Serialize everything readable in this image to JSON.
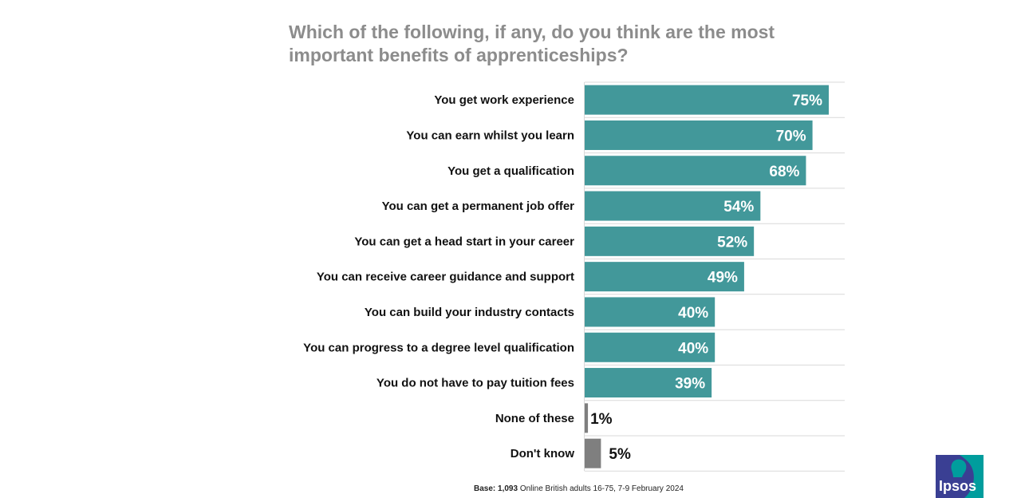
{
  "title": "Which of the following, if any, do you think are the most important benefits of apprenticeships?",
  "footer": {
    "base_label": "Base:",
    "base_value": "1,093",
    "base_text": "Online British adults 16-75, 7-9 February 2024"
  },
  "logo": {
    "text": "Ipsos",
    "colors": [
      "#3a3f93",
      "#009d9d"
    ]
  },
  "colors": {
    "main_bar": "#42989a",
    "other_bar": "#7f7f7f",
    "grid": "#d9d9d9"
  },
  "chart_data": {
    "type": "bar",
    "orientation": "horizontal",
    "categories": [
      "You get work experience",
      "You can earn whilst you learn",
      "You get a qualification",
      "You can get a permanent job offer",
      "You can get a head start in your career",
      "You can receive career guidance and support",
      "You can build your industry contacts",
      "You can progress to a degree level qualification",
      "You do not have to pay tuition fees",
      "None of these",
      "Don't know"
    ],
    "values": [
      75,
      70,
      68,
      54,
      52,
      49,
      40,
      40,
      39,
      1,
      5
    ],
    "labels": [
      "75%",
      "70%",
      "68%",
      "54%",
      "52%",
      "49%",
      "40%",
      "40%",
      "39%",
      "1%",
      "5%"
    ],
    "bar_colors": [
      "#42989a",
      "#42989a",
      "#42989a",
      "#42989a",
      "#42989a",
      "#42989a",
      "#42989a",
      "#42989a",
      "#42989a",
      "#7f7f7f",
      "#7f7f7f"
    ],
    "xlim": [
      0,
      80
    ],
    "unit": "%"
  }
}
